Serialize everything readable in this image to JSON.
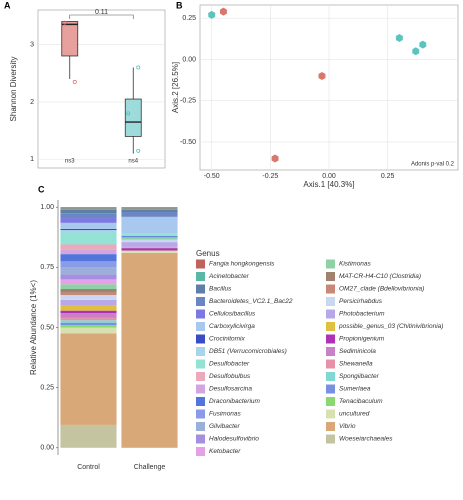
{
  "chart_data": [
    {
      "type": "box",
      "panel": "A",
      "ylabel": "Shannon Diversity",
      "categories": [
        "ns3",
        "ns4"
      ],
      "colors": [
        "#e8a09c",
        "#9edbdb"
      ],
      "boxes": [
        {
          "min": 2.4,
          "q1": 2.8,
          "median": 3.35,
          "q3": 3.4,
          "max": 3.4,
          "points": [
            2.35,
            3.38
          ]
        },
        {
          "min": 1.1,
          "q1": 1.4,
          "median": 1.65,
          "q3": 2.05,
          "max": 2.6,
          "points": [
            1.15,
            1.8,
            2.6
          ]
        }
      ],
      "annotation": "0.11",
      "ylim": [
        0.85,
        3.6
      ],
      "yticks": [
        1,
        2,
        3
      ],
      "grid": true
    },
    {
      "type": "scatter",
      "panel": "B",
      "xlabel": "Axis.1 [40.3%]",
      "ylabel": "Axis.2 [26.5%]",
      "annotation": "Adonis p-val 0.2",
      "series": [
        {
          "color": "#5cc4c0",
          "x": [
            -0.5,
            0.3,
            0.37,
            0.4
          ],
          "y": [
            0.27,
            0.13,
            0.05,
            0.09
          ]
        },
        {
          "color": "#d9776b",
          "x": [
            -0.45,
            -0.03,
            -0.23
          ],
          "y": [
            0.29,
            -0.1,
            -0.6
          ]
        }
      ],
      "xlim": [
        -0.55,
        0.55
      ],
      "ylim": [
        -0.67,
        0.33
      ],
      "xticks": [
        {
          "value": -0.5,
          "label": "-0.50"
        },
        -0.25,
        {
          "value": 0,
          "label": "0.00"
        },
        0.25
      ],
      "yticks": [
        {
          "value": -0.5,
          "label": "-0.50"
        },
        -0.25,
        {
          "value": 0,
          "label": "0.00"
        },
        0.25
      ],
      "grid": true
    },
    {
      "type": "stacked_bar",
      "panel": "C",
      "ylabel": "Relative Abundance (1%<)",
      "legend_title": "Genus",
      "categories": [
        "Control",
        "Challenge"
      ],
      "series": [
        {
          "name": "Fangia hongkongensis",
          "color": "#c0625b",
          "values": [
            0.005,
            0.005
          ]
        },
        {
          "name": "Acinetobacter",
          "color": "#5bb8a8",
          "values": [
            0.005,
            0.005
          ]
        },
        {
          "name": "Bacillus",
          "color": "#5d7fa8",
          "values": [
            0.015,
            0.01
          ]
        },
        {
          "name": "Bacteroidetes_VC2.1_Bac22",
          "color": "#6b86c4",
          "values": [
            0.02,
            0.02
          ]
        },
        {
          "name": "Cellulosibacillus",
          "color": "#7a7ae0",
          "values": [
            0.02,
            0
          ]
        },
        {
          "name": "Carboxylicivirga",
          "color": "#a8c8ee",
          "values": [
            0.025,
            0.07
          ]
        },
        {
          "name": "Crocinitomix",
          "color": "#3a4cc4",
          "values": [
            0.005,
            0
          ]
        },
        {
          "name": "DB51 (Verrucomicrobiales)",
          "color": "#a8d4ec",
          "values": [
            0.01,
            0
          ]
        },
        {
          "name": "Desulfobacter",
          "color": "#93e2d4",
          "values": [
            0.05,
            0.01
          ]
        },
        {
          "name": "Desulfobulbus",
          "color": "#eba9bb",
          "values": [
            0.02,
            0
          ]
        },
        {
          "name": "Desulfosarcina",
          "color": "#d2a4e0",
          "values": [
            0.02,
            0
          ]
        },
        {
          "name": "Draconibacterium",
          "color": "#5275dc",
          "values": [
            0.03,
            0.005
          ]
        },
        {
          "name": "Fusimonas",
          "color": "#8a9be8",
          "values": [
            0.025,
            0
          ]
        },
        {
          "name": "Gilvibacter",
          "color": "#9ab0d8",
          "values": [
            0.03,
            0
          ]
        },
        {
          "name": "Halodesulfovibrio",
          "color": "#a68ee0",
          "values": [
            0.02,
            0
          ]
        },
        {
          "name": "Ketobacter",
          "color": "#e4a0e8",
          "values": [
            0.02,
            0
          ]
        },
        {
          "name": "Kistimonas",
          "color": "#8fd1a4",
          "values": [
            0.02,
            0.01
          ]
        },
        {
          "name": "MAT-CR-H4-C10 (Clostridia)",
          "color": "#a0826e",
          "values": [
            0.015,
            0
          ]
        },
        {
          "name": "OM27_clade (Bdellovibrionia)",
          "color": "#c98776",
          "values": [
            0.01,
            0
          ]
        },
        {
          "name": "Persicirhabdus",
          "color": "#c8d8f0",
          "values": [
            0.02,
            0.01
          ]
        },
        {
          "name": "Photobacterium",
          "color": "#b8a8e8",
          "values": [
            0.025,
            0.02
          ]
        },
        {
          "name": "possible_genus_03 (Chitinivibrionia)",
          "color": "#e0c040",
          "values": [
            0.02,
            0.005
          ]
        },
        {
          "name": "Propionigenium",
          "color": "#b030b8",
          "values": [
            0.01,
            0.01
          ]
        },
        {
          "name": "Sediminicola",
          "color": "#c880c8",
          "values": [
            0.02,
            0
          ]
        },
        {
          "name": "Shewanella",
          "color": "#e890a8",
          "values": [
            0.01,
            0
          ]
        },
        {
          "name": "Spongiibacter",
          "color": "#80d8d0",
          "values": [
            0.01,
            0
          ]
        },
        {
          "name": "Sumerlaea",
          "color": "#7890e0",
          "values": [
            0.01,
            0
          ]
        },
        {
          "name": "Tenacibaculum",
          "color": "#8ad870",
          "values": [
            0.01,
            0
          ]
        },
        {
          "name": "uncultured",
          "color": "#d8e0b0",
          "values": [
            0.025,
            0.01
          ]
        },
        {
          "name": "Vibrio",
          "color": "#d8a878",
          "values": [
            0.38,
            0.81
          ]
        },
        {
          "name": "Woeseiarchaeales",
          "color": "#c4c4a0",
          "values": [
            0.095,
            0
          ]
        }
      ],
      "ylim": [
        -0.03,
        1.03
      ],
      "yticks": [
        {
          "value": 0,
          "label": "0.00"
        },
        0.25,
        {
          "value": 0.5,
          "label": "0.50"
        },
        0.75,
        {
          "value": 1,
          "label": "1.00"
        }
      ]
    }
  ]
}
